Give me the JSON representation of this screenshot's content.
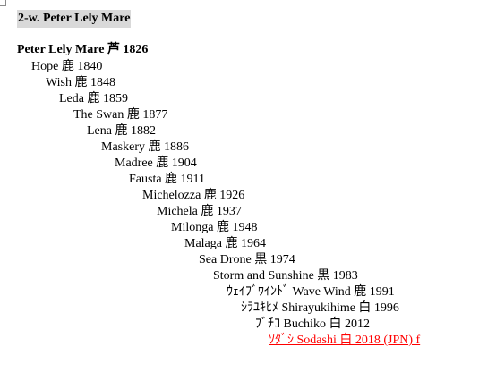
{
  "document": {
    "heading": "2-w. Peter Lely Mare",
    "root": "Peter Lely Mare 芦 1826",
    "lineage": [
      "Hope 鹿 1840",
      "Wish 鹿 1848",
      "Leda 鹿 1859",
      "The Swan 鹿 1877",
      "Lena 鹿 1882",
      "Maskery 鹿 1886",
      "Madree 鹿 1904",
      "Fausta 鹿 1911",
      "Michelozza 鹿 1926",
      "Michela 鹿 1937",
      "Milonga 鹿 1948",
      "Malaga 鹿 1964",
      "Sea Drone 黒 1974",
      "Storm and Sunshine 黒 1983",
      "ｳｪｲﾌﾞｳｲﾝﾄﾞ Wave Wind 鹿 1991",
      "ｼﾗﾕｷﾋﾒ Shirayukihime 白 1996",
      "ﾌﾞﾁｺ Buchiko 白 2012",
      "ｿﾀﾞｼ Sodashi 白 2018 (JPN) f"
    ],
    "highlight_color": "#ff0000",
    "heading_background": "#d9d9d9"
  }
}
